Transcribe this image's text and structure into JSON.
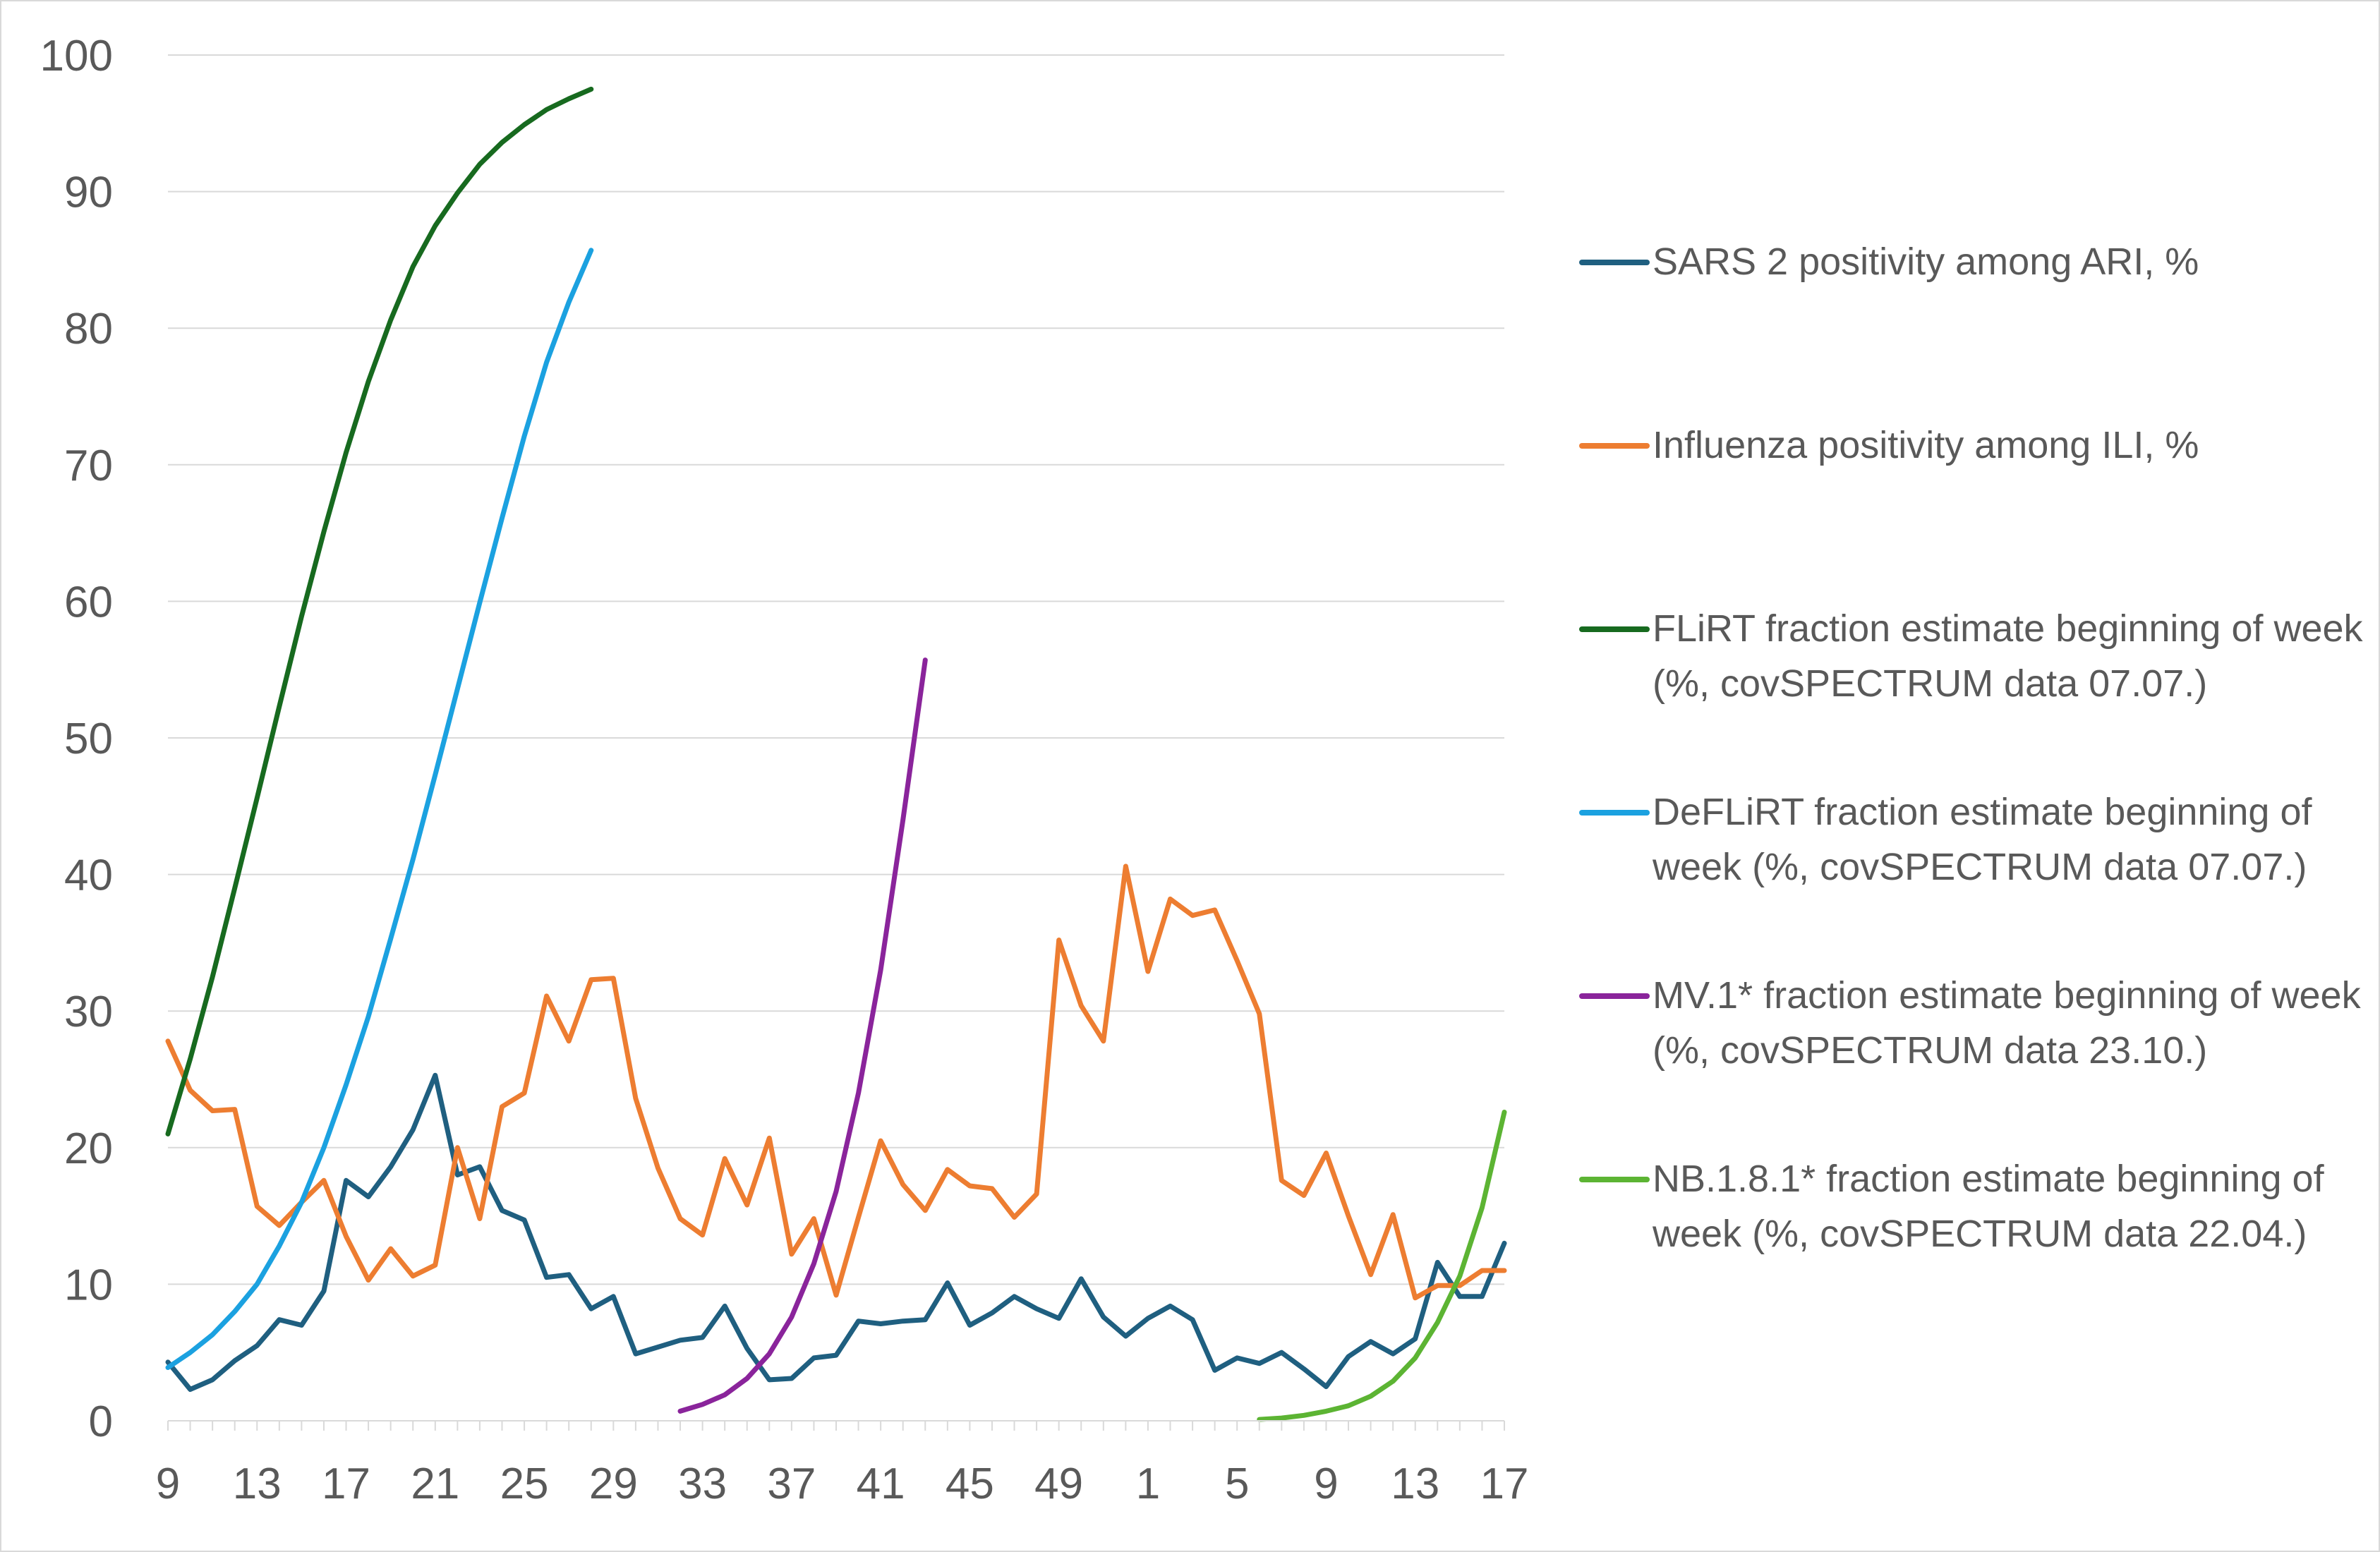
{
  "chart_data": {
    "type": "line",
    "title": "",
    "xlabel": "",
    "ylabel": "",
    "ylim": [
      0,
      100
    ],
    "yticks": [
      "0",
      "10",
      "20",
      "30",
      "40",
      "50",
      "60",
      "70",
      "80",
      "90",
      "100"
    ],
    "xticks": [
      "9",
      "13",
      "17",
      "21",
      "25",
      "29",
      "33",
      "37",
      "41",
      "45",
      "49",
      "1",
      "5",
      "9",
      "13",
      "17"
    ],
    "grid": "horizontal",
    "legend_position": "right",
    "x_weeks": [
      "9",
      "10",
      "11",
      "12",
      "13",
      "14",
      "15",
      "16",
      "17",
      "18",
      "19",
      "20",
      "21",
      "22",
      "23",
      "24",
      "25",
      "26",
      "27",
      "28",
      "29",
      "30",
      "31",
      "32",
      "33",
      "34",
      "35",
      "36",
      "37",
      "38",
      "39",
      "40",
      "41",
      "42",
      "43",
      "44",
      "45",
      "46",
      "47",
      "48",
      "49",
      "50",
      "51",
      "52",
      "1",
      "2",
      "3",
      "4",
      "5",
      "6",
      "7",
      "8",
      "9",
      "10",
      "11",
      "12",
      "13",
      "14",
      "15",
      "16",
      "17"
    ],
    "series": [
      {
        "name": "SARS 2 positivity among ARI, %",
        "color": "#1f5f80",
        "start_index": 0,
        "values": [
          4.3,
          2.3,
          3,
          4.4,
          5.5,
          7.4,
          7,
          9.5,
          17.6,
          16.4,
          18.6,
          21.3,
          25.3,
          18,
          18.6,
          15.4,
          14.7,
          10.5,
          10.7,
          8.2,
          9.1,
          4.9,
          5.4,
          5.9,
          6.1,
          8.4,
          5.3,
          3,
          3.1,
          4.6,
          4.8,
          7.3,
          7.1,
          7.3,
          7.4,
          10.1,
          7,
          7.9,
          9.1,
          8.2,
          7.5,
          10.4,
          7.6,
          6.2,
          7.5,
          8.4,
          7.4,
          3.7,
          4.6,
          4.2,
          5,
          3.8,
          2.5,
          4.7,
          5.8,
          4.9,
          6,
          11.6,
          9.1,
          9.1,
          13
        ]
      },
      {
        "name": "Influenza positivity among ILI, %",
        "color": "#ed7d31",
        "start_index": 0,
        "values": [
          27.8,
          24.2,
          22.7,
          22.8,
          15.7,
          14.3,
          16,
          17.6,
          13.5,
          10.3,
          12.6,
          10.6,
          11.4,
          20,
          14.8,
          23,
          24,
          31.1,
          27.8,
          32.3,
          32.4,
          23.6,
          18.5,
          14.8,
          13.6,
          19.2,
          15.8,
          20.7,
          12.2,
          14.8,
          9.2,
          14.9,
          20.5,
          17.3,
          15.4,
          18.4,
          17.2,
          17,
          14.9,
          16.6,
          35.2,
          30.4,
          27.8,
          40.6,
          32.9,
          38.2,
          37,
          37.4,
          33.7,
          29.8,
          17.6,
          16.5,
          19.6,
          15,
          10.7,
          15.1,
          9,
          9.9,
          9.9,
          11,
          11
        ]
      },
      {
        "name": "FLiRT fraction estimate beginning of week (%, covSPECTRUM data 07.07.)",
        "color": "#176a1f",
        "start_index": 0,
        "values": [
          21,
          26.5,
          32.5,
          39,
          45.6,
          52.3,
          58.9,
          65.1,
          70.9,
          76.1,
          80.6,
          84.5,
          87.5,
          89.9,
          92,
          93.6,
          94.9,
          96,
          96.8,
          97.5
        ]
      },
      {
        "name": "DeFLiRT fraction estimate beginning of week (%, covSPECTRUM data 07.07.)",
        "color": "#1ba1e0",
        "start_index": 0,
        "values": [
          3.9,
          5,
          6.3,
          8,
          10,
          12.8,
          16,
          20,
          24.6,
          29.6,
          35.3,
          41.1,
          47.3,
          53.6,
          59.9,
          66.1,
          72.1,
          77.5,
          81.9,
          85.7
        ]
      },
      {
        "name": "MV.1* fraction estimate beginning of week (%, covSPECTRUM data 23.10.)",
        "color": "#8a249b",
        "start_index": 23,
        "values": [
          0.7,
          1.2,
          1.9,
          3.1,
          4.9,
          7.6,
          11.5,
          16.8,
          24,
          33,
          44,
          55.7
        ]
      },
      {
        "name": "NB.1.8.1* fraction estimate beginning of week (%, covSPECTRUM data 22.04.)",
        "color": "#5cb433",
        "start_index": 49,
        "values": [
          0.1,
          0.2,
          0.4,
          0.7,
          1.1,
          1.8,
          2.9,
          4.6,
          7.2,
          10.6,
          15.6,
          22.6
        ]
      }
    ]
  }
}
